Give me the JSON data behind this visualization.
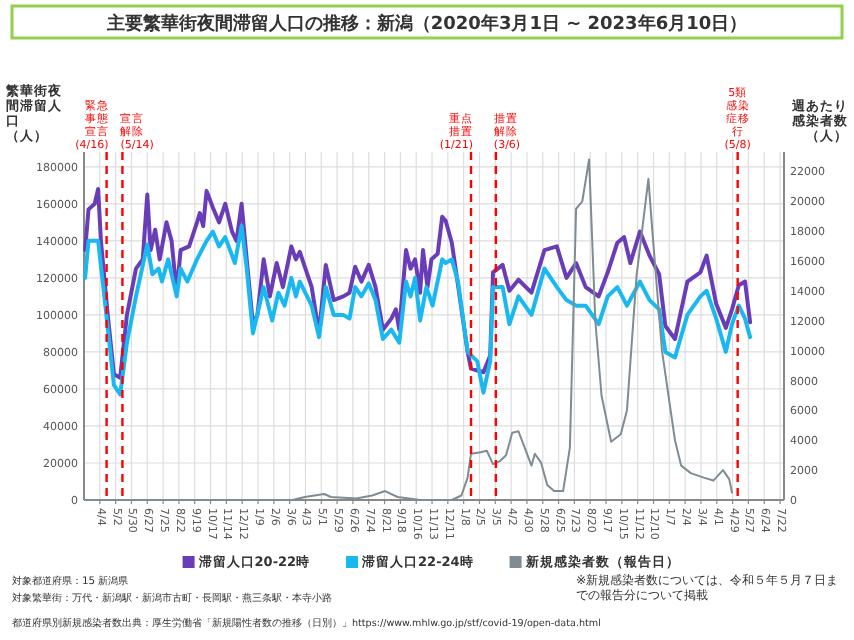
{
  "chart_data": {
    "type": "line",
    "title": "主要繁華街夜間滞留人口の推移：新潟（2020年3月1日 ~ 2023年6月10日）",
    "ylabel": "繁華街夜間滞留人口（人）",
    "y2label": "週あたり感染者数（人）",
    "annotations": [
      "※新規感染者数については、令和５年５月７日までの報告分について掲載",
      "対象都道府県：15 新潟県",
      "対象繁華街：万代・新潟駅・新潟市古町・長岡駅・燕三条駅・本寺小路",
      "都道府県別新規感染者数出典：厚生労働省「新規陽性者数の推移（日別）」https://www.mhlw.go.jp/stf/covid-19/open-data.html"
    ],
    "xlim": [
      "2020-03-07",
      "2023-07-29"
    ],
    "xticks": [
      {
        "value": "2020-04-04",
        "label": "4/4"
      },
      {
        "value": "2020-05-02",
        "label": "5/2"
      },
      {
        "value": "2020-05-30",
        "label": "5/30"
      },
      {
        "value": "2020-06-27",
        "label": "6/27"
      },
      {
        "value": "2020-07-25",
        "label": "7/25"
      },
      {
        "value": "2020-08-22",
        "label": "8/22"
      },
      {
        "value": "2020-09-19",
        "label": "9/19"
      },
      {
        "value": "2020-10-17",
        "label": "10/17"
      },
      {
        "value": "2020-11-14",
        "label": "11/14"
      },
      {
        "value": "2020-12-12",
        "label": "12/12"
      },
      {
        "value": "2021-01-09",
        "label": "1/9"
      },
      {
        "value": "2021-02-06",
        "label": "2/6"
      },
      {
        "value": "2021-03-06",
        "label": "3/6"
      },
      {
        "value": "2021-04-03",
        "label": "4/3"
      },
      {
        "value": "2021-05-01",
        "label": "5/1"
      },
      {
        "value": "2021-05-29",
        "label": "5/29"
      },
      {
        "value": "2021-06-26",
        "label": "6/26"
      },
      {
        "value": "2021-07-24",
        "label": "7/24"
      },
      {
        "value": "2021-08-21",
        "label": "8/21"
      },
      {
        "value": "2021-09-18",
        "label": "9/18"
      },
      {
        "value": "2021-10-16",
        "label": "10/16"
      },
      {
        "value": "2021-11-13",
        "label": "11/13"
      },
      {
        "value": "2021-12-11",
        "label": "12/11"
      },
      {
        "value": "2022-01-08",
        "label": "1/8"
      },
      {
        "value": "2022-02-05",
        "label": "2/5"
      },
      {
        "value": "2022-03-05",
        "label": "3/5"
      },
      {
        "value": "2022-04-02",
        "label": "4/2"
      },
      {
        "value": "2022-04-30",
        "label": "4/30"
      },
      {
        "value": "2022-05-28",
        "label": "5/28"
      },
      {
        "value": "2022-06-25",
        "label": "6/25"
      },
      {
        "value": "2022-07-23",
        "label": "7/23"
      },
      {
        "value": "2022-08-20",
        "label": "8/20"
      },
      {
        "value": "2022-09-17",
        "label": "9/17"
      },
      {
        "value": "2022-10-15",
        "label": "10/15"
      },
      {
        "value": "2022-11-12",
        "label": "11/12"
      },
      {
        "value": "2022-12-10",
        "label": "12/10"
      },
      {
        "value": "2023-01-07",
        "label": "1/7"
      },
      {
        "value": "2023-02-04",
        "label": "2/4"
      },
      {
        "value": "2023-03-04",
        "label": "3/4"
      },
      {
        "value": "2023-04-01",
        "label": "4/1"
      },
      {
        "value": "2023-04-29",
        "label": "4/29"
      },
      {
        "value": "2023-05-27",
        "label": "5/27"
      },
      {
        "value": "2023-06-24",
        "label": "6/24"
      },
      {
        "value": "2023-07-22",
        "label": "7/22"
      }
    ],
    "ylim": [
      0,
      188000
    ],
    "yticks": [
      0,
      20000,
      40000,
      60000,
      80000,
      100000,
      120000,
      140000,
      160000,
      180000
    ],
    "y2lim": [
      0,
      23300
    ],
    "y2ticks": [
      0,
      2000,
      4000,
      6000,
      8000,
      10000,
      12000,
      14000,
      16000,
      18000,
      20000,
      22000
    ],
    "grid": true,
    "legend": "bottom",
    "ref_lines": [
      {
        "axis": "x",
        "value": "2020-04-16",
        "label": "緊急事態宣言(4/16)",
        "color": "#ff0000",
        "line_style": "dashed"
      },
      {
        "axis": "x",
        "value": "2020-05-14",
        "label": "宣言解除(5/14)",
        "color": "#ff0000",
        "line_style": "dashed"
      },
      {
        "axis": "x",
        "value": "2022-01-21",
        "label": "重点措置(1/21)",
        "color": "#ff0000",
        "line_style": "dashed"
      },
      {
        "axis": "x",
        "value": "2022-03-06",
        "label": "措置解除(3/6)",
        "color": "#ff0000",
        "line_style": "dashed"
      },
      {
        "axis": "x",
        "value": "2023-05-08",
        "label": "5類感染症移行(5/8)",
        "color": "#ff0000",
        "line_style": "dashed"
      }
    ],
    "series": [
      {
        "name": "滞留人口20-22時",
        "color": "#6a3db8",
        "x": [
          "2020-03-09",
          "2020-03-15",
          "2020-03-26",
          "2020-04-01",
          "2020-04-06",
          "2020-04-18",
          "2020-04-29",
          "2020-05-10",
          "2020-05-22",
          "2020-06-07",
          "2020-06-19",
          "2020-06-27",
          "2020-07-03",
          "2020-07-11",
          "2020-07-19",
          "2020-07-31",
          "2020-08-09",
          "2020-08-18",
          "2020-08-25",
          "2020-09-09",
          "2020-09-23",
          "2020-09-28",
          "2020-10-04",
          "2020-10-10",
          "2020-10-21",
          "2020-11-01",
          "2020-11-12",
          "2020-11-24",
          "2020-12-02",
          "2020-12-11",
          "2020-12-20",
          "2020-12-31",
          "2021-01-08",
          "2021-01-19",
          "2021-01-30",
          "2021-02-11",
          "2021-02-22",
          "2021-03-09",
          "2021-03-17",
          "2021-03-24",
          "2021-04-14",
          "2021-04-27",
          "2021-05-09",
          "2021-05-23",
          "2021-06-09",
          "2021-06-20",
          "2021-06-30",
          "2021-07-11",
          "2021-07-24",
          "2021-08-05",
          "2021-08-18",
          "2021-09-02",
          "2021-09-10",
          "2021-09-16",
          "2021-09-28",
          "2021-10-06",
          "2021-10-14",
          "2021-10-23",
          "2021-10-28",
          "2021-11-05",
          "2021-11-12",
          "2021-11-23",
          "2021-12-01",
          "2021-12-07",
          "2021-12-18",
          "2021-12-29",
          "2022-01-15",
          "2022-01-21",
          "2022-02-12",
          "2022-02-24",
          "2022-03-01",
          "2022-03-18",
          "2022-03-30",
          "2022-04-15",
          "2022-05-08",
          "2022-05-31",
          "2022-06-22",
          "2022-07-09",
          "2022-07-26",
          "2022-08-12",
          "2022-09-04",
          "2022-09-20",
          "2022-10-07",
          "2022-10-19",
          "2022-10-30",
          "2022-11-16",
          "2022-12-03",
          "2022-12-20",
          "2022-12-31",
          "2023-01-17",
          "2023-02-08",
          "2023-03-03",
          "2023-03-14",
          "2023-03-31",
          "2023-04-17",
          "2023-04-28",
          "2023-05-10",
          "2023-05-21",
          "2023-05-30"
        ],
        "values": [
          135000,
          157000,
          160000,
          168000,
          140000,
          100000,
          68000,
          66000,
          100000,
          125000,
          130000,
          165000,
          135000,
          146000,
          130000,
          150000,
          140000,
          112000,
          135000,
          137000,
          150000,
          155000,
          148000,
          167000,
          158000,
          150000,
          160000,
          145000,
          140000,
          160000,
          130000,
          95000,
          100000,
          130000,
          110000,
          128000,
          115000,
          137000,
          130000,
          134000,
          115000,
          90000,
          127000,
          108000,
          110000,
          112000,
          126000,
          118000,
          127000,
          115000,
          92000,
          98000,
          103000,
          92000,
          135000,
          125000,
          130000,
          112000,
          135000,
          115000,
          130000,
          133000,
          153000,
          151000,
          139000,
          116000,
          80000,
          71000,
          69000,
          78000,
          123000,
          127000,
          113000,
          119000,
          112000,
          135000,
          137000,
          120000,
          128000,
          115000,
          110000,
          123000,
          139000,
          142000,
          128000,
          145000,
          132000,
          122000,
          94000,
          87000,
          118000,
          123000,
          132000,
          106000,
          93000,
          103000,
          116000,
          118000,
          96000
        ]
      },
      {
        "name": "滞留人口22-24時",
        "color": "#1ab8f0",
        "x": [
          "2020-03-09",
          "2020-03-15",
          "2020-04-01",
          "2020-04-12",
          "2020-04-29",
          "2020-05-10",
          "2020-05-22",
          "2020-06-07",
          "2020-06-27",
          "2020-07-06",
          "2020-07-17",
          "2020-07-23",
          "2020-08-03",
          "2020-08-18",
          "2020-08-25",
          "2020-09-06",
          "2020-09-23",
          "2020-10-10",
          "2020-10-21",
          "2020-11-01",
          "2020-11-12",
          "2020-11-29",
          "2020-12-11",
          "2020-12-20",
          "2020-12-31",
          "2021-01-19",
          "2021-02-03",
          "2021-02-14",
          "2021-02-25",
          "2021-03-09",
          "2021-03-17",
          "2021-03-24",
          "2021-04-14",
          "2021-04-27",
          "2021-05-09",
          "2021-05-23",
          "2021-06-09",
          "2021-06-20",
          "2021-06-30",
          "2021-07-11",
          "2021-07-24",
          "2021-08-05",
          "2021-08-18",
          "2021-09-02",
          "2021-09-16",
          "2021-09-28",
          "2021-10-06",
          "2021-10-14",
          "2021-10-23",
          "2021-11-03",
          "2021-11-14",
          "2021-12-01",
          "2021-12-07",
          "2021-12-18",
          "2021-12-29",
          "2022-01-15",
          "2022-02-01",
          "2022-02-12",
          "2022-02-24",
          "2022-03-01",
          "2022-03-18",
          "2022-03-30",
          "2022-04-15",
          "2022-05-08",
          "2022-05-31",
          "2022-06-22",
          "2022-07-09",
          "2022-07-26",
          "2022-08-12",
          "2022-09-04",
          "2022-09-20",
          "2022-10-07",
          "2022-10-24",
          "2022-11-16",
          "2022-12-03",
          "2022-12-20",
          "2022-12-31",
          "2023-01-17",
          "2023-02-08",
          "2023-03-03",
          "2023-03-14",
          "2023-03-31",
          "2023-04-17",
          "2023-04-28",
          "2023-05-10",
          "2023-05-21",
          "2023-05-30"
        ],
        "values": [
          120000,
          140000,
          140000,
          110000,
          62000,
          57000,
          85000,
          110000,
          138000,
          122000,
          125000,
          118000,
          130000,
          110000,
          125000,
          118000,
          130000,
          140000,
          145000,
          137000,
          142000,
          128000,
          148000,
          125000,
          90000,
          115000,
          97000,
          112000,
          105000,
          120000,
          110000,
          118000,
          105000,
          88000,
          115000,
          100000,
          100000,
          98000,
          115000,
          110000,
          117000,
          108000,
          87000,
          92000,
          85000,
          118000,
          110000,
          120000,
          97000,
          115000,
          105000,
          130000,
          128000,
          130000,
          118000,
          80000,
          75000,
          58000,
          75000,
          115000,
          115000,
          95000,
          110000,
          100000,
          125000,
          115000,
          108000,
          105000,
          105000,
          95000,
          110000,
          115000,
          105000,
          118000,
          108000,
          103000,
          80000,
          77000,
          100000,
          110000,
          113000,
          98000,
          80000,
          95000,
          105000,
          98000,
          88000
        ]
      },
      {
        "name": "新規感染者数（報告日）",
        "color": "#7f8c93",
        "axis": "y2",
        "x": [
          "2020-03-09",
          "2021-03-11",
          "2021-04-02",
          "2021-05-06",
          "2021-05-18",
          "2021-07-02",
          "2021-07-30",
          "2021-08-22",
          "2021-09-13",
          "2021-10-23",
          "2021-12-18",
          "2022-01-04",
          "2022-01-15",
          "2022-01-21",
          "2022-02-07",
          "2022-02-18",
          "2022-03-01",
          "2022-03-13",
          "2022-03-24",
          "2022-04-04",
          "2022-04-15",
          "2022-04-27",
          "2022-05-08",
          "2022-05-14",
          "2022-05-25",
          "2022-06-05",
          "2022-06-17",
          "2022-07-03",
          "2022-07-15",
          "2022-07-26",
          "2022-08-06",
          "2022-08-18",
          "2022-08-29",
          "2022-09-09",
          "2022-09-26",
          "2022-10-13",
          "2022-10-24",
          "2022-11-10",
          "2022-12-01",
          "2022-12-08",
          "2022-12-25",
          "2023-01-17",
          "2023-01-28",
          "2023-02-14",
          "2023-03-09",
          "2023-03-26",
          "2023-04-12",
          "2023-04-23",
          "2023-04-28"
        ],
        "values": [
          0,
          0,
          200,
          400,
          200,
          100,
          300,
          600,
          200,
          0,
          0,
          300,
          1500,
          3100,
          3200,
          3300,
          2400,
          2600,
          3000,
          4500,
          4600,
          3400,
          2300,
          3100,
          2500,
          1000,
          600,
          600,
          3500,
          19500,
          20000,
          22800,
          12000,
          7000,
          3900,
          4400,
          6000,
          15000,
          21500,
          18000,
          10000,
          4000,
          2300,
          1800,
          1500,
          1300,
          2000,
          1400,
          500
        ]
      }
    ]
  }
}
